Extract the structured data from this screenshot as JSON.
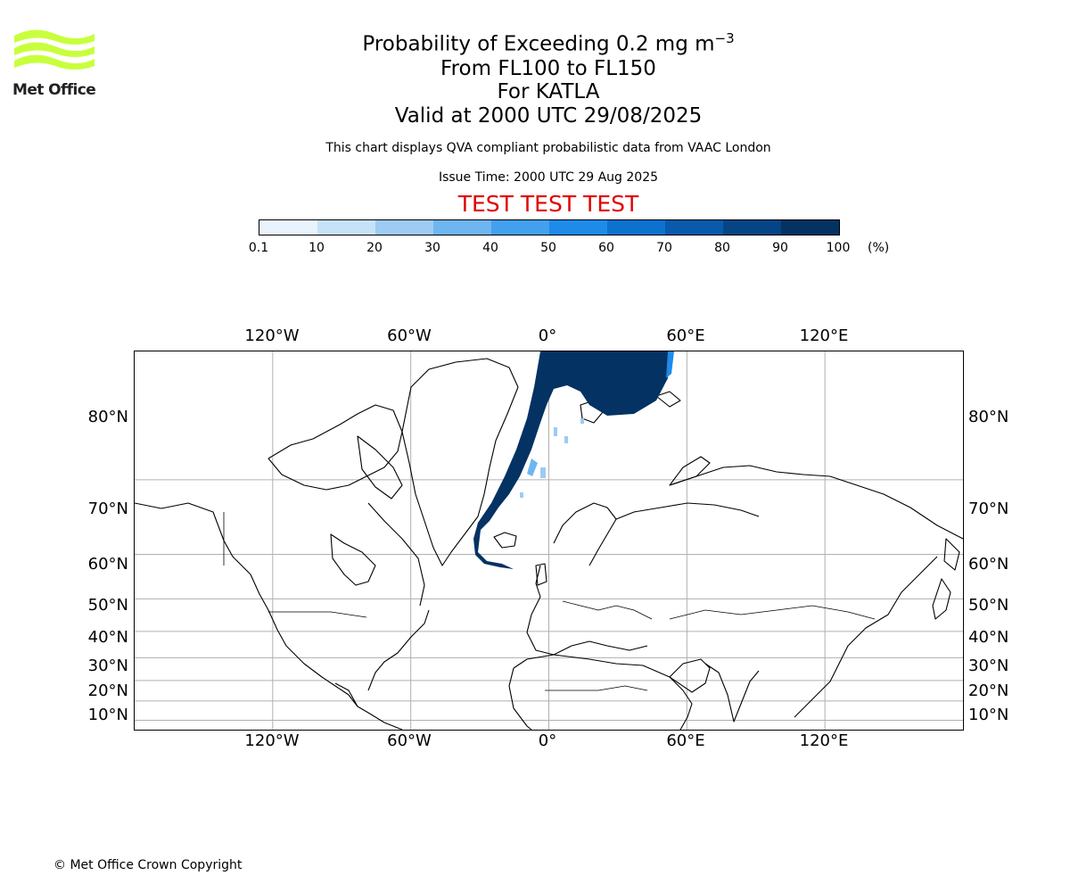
{
  "logo": {
    "text": "Met Office",
    "wave_color": "#c8ff3c"
  },
  "title": {
    "main": "Probability of Exceeding 0.2 mg m",
    "superscript": "−3",
    "levels": "From FL100 to FL150",
    "volcano": "For KATLA",
    "valid": "Valid at 2000 UTC 29/08/2025"
  },
  "subtitle": "This chart displays QVA compliant probabilistic data from VAAC London",
  "issue_time": "Issue Time: 2000 UTC 29 Aug 2025",
  "test_banner": "TEST TEST TEST",
  "test_color": "#e00000",
  "colorbar": {
    "ticks": [
      "0.1",
      "10",
      "20",
      "30",
      "40",
      "50",
      "60",
      "70",
      "80",
      "90",
      "100"
    ],
    "unit": "(%)",
    "colors": [
      "#e8f3fd",
      "#c6e2f8",
      "#9dcbf4",
      "#6eb6f1",
      "#43a0ee",
      "#1e8aea",
      "#0d71d0",
      "#095aac",
      "#064585",
      "#043262"
    ]
  },
  "map": {
    "projection": "mercator",
    "lon_range": [
      -180,
      180
    ],
    "lat_range": [
      5,
      87
    ],
    "grid": true,
    "lon_labels": [
      "120°W",
      "60°W",
      "0°",
      "60°E",
      "120°E"
    ],
    "lat_labels": [
      "80°N",
      "70°N",
      "60°N",
      "50°N",
      "40°N",
      "30°N",
      "20°N",
      "10°N"
    ],
    "plume_color": "#043262"
  },
  "copyright": "© Met Office Crown Copyright"
}
